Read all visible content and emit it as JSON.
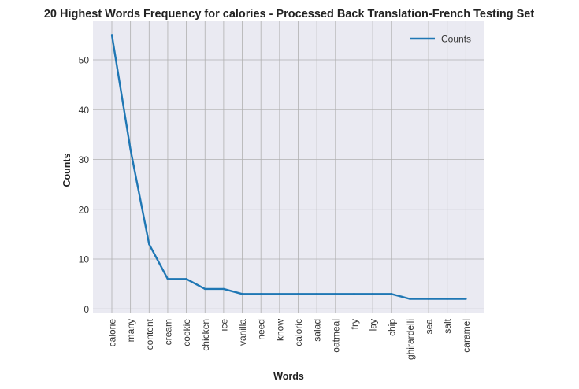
{
  "chart_data": {
    "type": "line",
    "title": "20 Highest Words Frequency for calories - Processed Back Translation-French Testing Set",
    "xlabel": "Words",
    "ylabel": "Counts",
    "categories": [
      "calorie",
      "many",
      "content",
      "cream",
      "cookie",
      "chicken",
      "ice",
      "vanilla",
      "need",
      "know",
      "caloric",
      "salad",
      "oatmeal",
      "fry",
      "lay",
      "chip",
      "ghirardelli",
      "sea",
      "salt",
      "caramel"
    ],
    "series": [
      {
        "name": "Counts",
        "color": "#1f77b4",
        "values": [
          55,
          32,
          13,
          6,
          6,
          4,
          4,
          3,
          3,
          3,
          3,
          3,
          3,
          3,
          3,
          3,
          2,
          2,
          2,
          2
        ]
      }
    ],
    "yticks": [
      0,
      10,
      20,
      30,
      40,
      50
    ],
    "ylim": [
      -0.75,
      57.75
    ],
    "grid": true,
    "legend_position": "top-right",
    "plot_background": "#eaeaf2",
    "grid_color": "#b0b0b0"
  }
}
